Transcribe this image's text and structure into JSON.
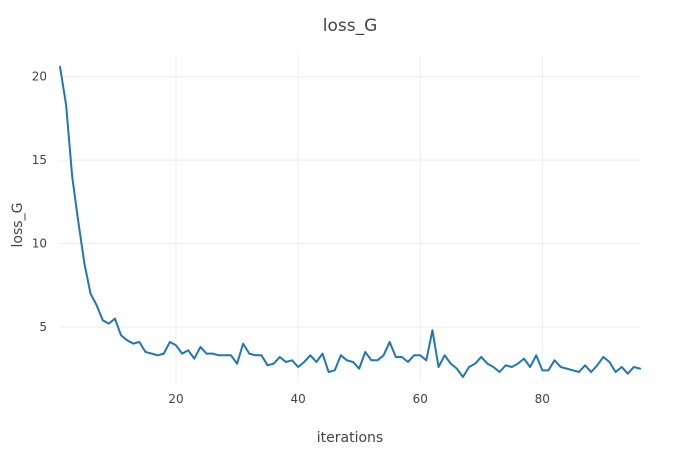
{
  "chart_data": {
    "type": "line",
    "title": "loss_G",
    "xlabel": "iterations",
    "ylabel": "loss_G",
    "xlim": [
      1,
      96
    ],
    "ylim": [
      1.7,
      21.3
    ],
    "grid": true,
    "x_ticks": [
      20,
      40,
      60,
      80
    ],
    "y_ticks": [
      5,
      10,
      15,
      20
    ],
    "series": [
      {
        "color": "#1f77b4",
        "x": [
          1,
          2,
          3,
          4,
          5,
          6,
          7,
          8,
          9,
          10,
          11,
          12,
          13,
          14,
          15,
          16,
          17,
          18,
          19,
          20,
          21,
          22,
          23,
          24,
          25,
          26,
          27,
          28,
          29,
          30,
          31,
          32,
          33,
          34,
          35,
          36,
          37,
          38,
          39,
          40,
          41,
          42,
          43,
          44,
          45,
          46,
          47,
          48,
          49,
          50,
          51,
          52,
          53,
          54,
          55,
          56,
          57,
          58,
          59,
          60,
          61,
          62,
          63,
          64,
          65,
          66,
          67,
          68,
          69,
          70,
          71,
          72,
          73,
          74,
          75,
          76,
          77,
          78,
          79,
          80,
          81,
          82,
          83,
          84,
          85,
          86,
          87,
          88,
          89,
          90,
          91,
          92,
          93,
          94,
          95,
          96
        ],
        "y": [
          20.6,
          18.3,
          14.0,
          11.3,
          8.8,
          7.0,
          6.3,
          5.4,
          5.2,
          5.5,
          4.5,
          4.2,
          4.0,
          4.1,
          3.5,
          3.4,
          3.3,
          3.4,
          4.1,
          3.9,
          3.4,
          3.6,
          3.1,
          3.8,
          3.4,
          3.4,
          3.3,
          3.3,
          3.3,
          2.8,
          4.0,
          3.4,
          3.3,
          3.3,
          2.7,
          2.8,
          3.2,
          2.9,
          3.0,
          2.6,
          2.9,
          3.3,
          2.9,
          3.4,
          2.3,
          2.4,
          3.3,
          3.0,
          2.9,
          2.5,
          3.5,
          3.0,
          3.0,
          3.3,
          4.1,
          3.2,
          3.2,
          2.9,
          3.3,
          3.3,
          3.0,
          4.8,
          2.6,
          3.3,
          2.8,
          2.5,
          2.0,
          2.6,
          2.8,
          3.2,
          2.8,
          2.6,
          2.3,
          2.7,
          2.6,
          2.8,
          3.1,
          2.6,
          3.3,
          2.4,
          2.4,
          3.0,
          2.6,
          2.5,
          2.4,
          2.3,
          2.7,
          2.3,
          2.7,
          3.2,
          2.9,
          2.3,
          2.6,
          2.2,
          2.6,
          2.5
        ]
      }
    ]
  }
}
